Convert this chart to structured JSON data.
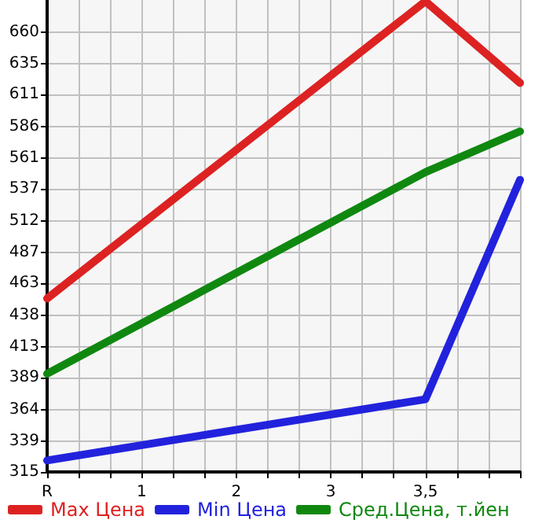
{
  "chart_data": {
    "type": "line",
    "categories": [
      "R",
      null,
      null,
      "1",
      null,
      null,
      "2",
      null,
      null,
      "3",
      null,
      null,
      "3,5",
      null,
      null,
      null
    ],
    "series": [
      {
        "name": "Max Цена",
        "color": "#dd2222",
        "values": [
          451,
          null,
          null,
          null,
          null,
          null,
          null,
          null,
          null,
          null,
          null,
          null,
          684,
          null,
          null,
          620
        ]
      },
      {
        "name": "Min Цена",
        "color": "#2222dd",
        "values": [
          324,
          null,
          null,
          null,
          null,
          null,
          null,
          null,
          null,
          null,
          null,
          null,
          372,
          null,
          null,
          544
        ]
      },
      {
        "name": "Сред.Цена, т.йен",
        "color": "#108810",
        "values": [
          392,
          null,
          null,
          null,
          null,
          null,
          null,
          null,
          null,
          null,
          null,
          null,
          550,
          null,
          null,
          582
        ]
      }
    ],
    "ylim": [
      315,
      685
    ],
    "yticks": [
      315,
      339,
      364,
      389,
      413,
      438,
      463,
      487,
      512,
      537,
      561,
      586,
      611,
      635,
      660
    ],
    "grid": true,
    "legend": "bottom",
    "marker": "none",
    "line_style": "solid"
  }
}
